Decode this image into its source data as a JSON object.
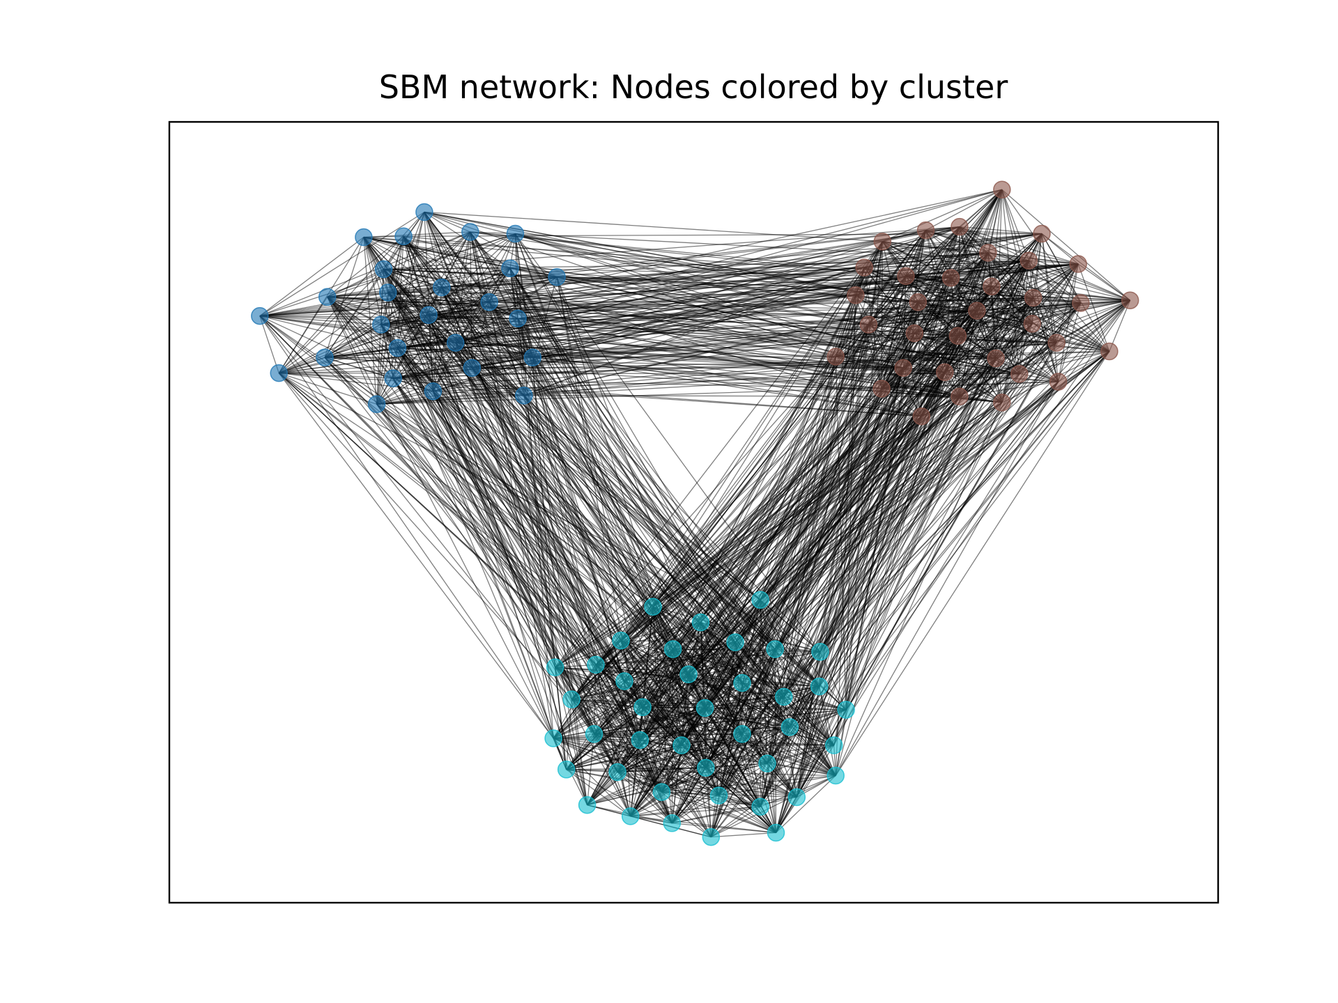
{
  "title": "SBM network: Nodes colored by cluster",
  "clusters": [
    {
      "id": 0,
      "color": "#1f77b4",
      "size": 24
    },
    {
      "id": 1,
      "color": "#8c564b",
      "size": 33
    },
    {
      "id": 2,
      "color": "#17becf",
      "size": 42
    }
  ],
  "edge_color": "#000000",
  "node_alpha": 0.6,
  "edge_alpha": 0.5
}
